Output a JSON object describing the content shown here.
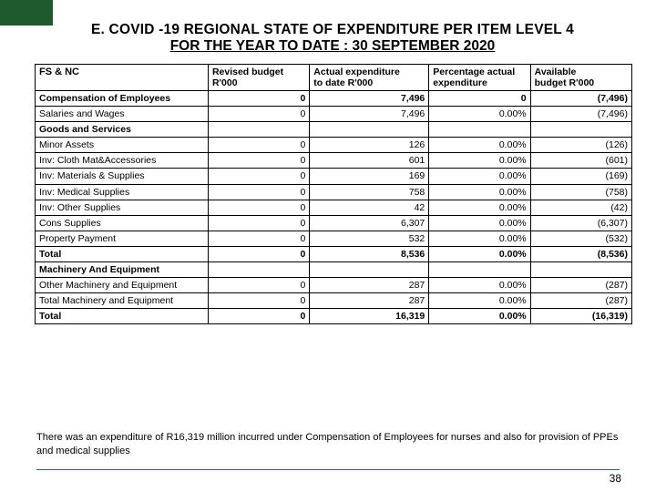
{
  "corner_color": "#1f5a2f",
  "title_line1": "E. COVID -19 REGIONAL STATE OF EXPENDITURE PER ITEM LEVEL 4",
  "title_line2": "FOR  THE YEAR TO DATE : 30 SEPTEMBER 2020",
  "headers": {
    "c0": "FS & NC",
    "c1a": "Revised        budget",
    "c1b": "R'000",
    "c2a": "Actual expenditure",
    "c2b": "to date        R'000",
    "c3a": "Percentage actual",
    "c3b": "expenditure",
    "c4a": "Available",
    "c4b": "budget R'000"
  },
  "rows": [
    {
      "cls": "section bold",
      "c0": "Compensation of Employees",
      "c1": "0",
      "c2": "7,496",
      "c3": "0",
      "c4": "(7,496)"
    },
    {
      "cls": "plain",
      "c0": "Salaries and Wages",
      "c1": "0",
      "c2": "7,496",
      "c3": "0.00%",
      "c4": "(7,496)"
    },
    {
      "cls": "section bold",
      "c0": "Goods and Services",
      "c1": "",
      "c2": "",
      "c3": "",
      "c4": ""
    },
    {
      "cls": "plain",
      "c0": "Minor Assets",
      "c1": "0",
      "c2": "126",
      "c3": "0.00%",
      "c4": "(126)"
    },
    {
      "cls": "plain",
      "c0": "Inv: Cloth Mat&Accessories",
      "c1": "0",
      "c2": "601",
      "c3": "0.00%",
      "c4": "(601)"
    },
    {
      "cls": "plain",
      "c0": "Inv: Materials & Supplies",
      "c1": "0",
      "c2": "169",
      "c3": "0.00%",
      "c4": "(169)"
    },
    {
      "cls": "plain",
      "c0": "Inv: Medical Supplies",
      "c1": "0",
      "c2": "758",
      "c3": "0.00%",
      "c4": "(758)"
    },
    {
      "cls": "plain",
      "c0": "Inv: Other Supplies",
      "c1": "0",
      "c2": "42",
      "c3": "0.00%",
      "c4": "(42)"
    },
    {
      "cls": "plain",
      "c0": "Cons Supplies",
      "c1": "0",
      "c2": "6,307",
      "c3": "0.00%",
      "c4": "(6,307)"
    },
    {
      "cls": "plain",
      "c0": "Property Payment",
      "c1": "0",
      "c2": "532",
      "c3": "0.00%",
      "c4": "(532)"
    },
    {
      "cls": "bold",
      "c0": "Total",
      "c1": "0",
      "c2": "8,536",
      "c3": "0.00%",
      "c4": "(8,536)"
    },
    {
      "cls": "section bold",
      "c0": "Machinery And Equipment",
      "c1": "",
      "c2": "",
      "c3": "",
      "c4": ""
    },
    {
      "cls": "plain",
      "c0": "Other Machinery and Equipment",
      "c1": "0",
      "c2": "287",
      "c3": "0.00%",
      "c4": "(287)"
    },
    {
      "cls": "plain",
      "c0": "Total Machinery and Equipment",
      "c1": "0",
      "c2": "287",
      "c3": "0.00%",
      "c4": "(287)"
    },
    {
      "cls": "bold",
      "c0": "Total",
      "c1": "0",
      "c2": "16,319",
      "c3": "0.00%",
      "c4": "(16,319)"
    }
  ],
  "footnote": "There was an expenditure of R16,319 million incurred under Compensation of Employees for nurses and also for provision of PPEs and medical supplies",
  "page_number": "38",
  "footer_line_color": "#3a6b3b"
}
